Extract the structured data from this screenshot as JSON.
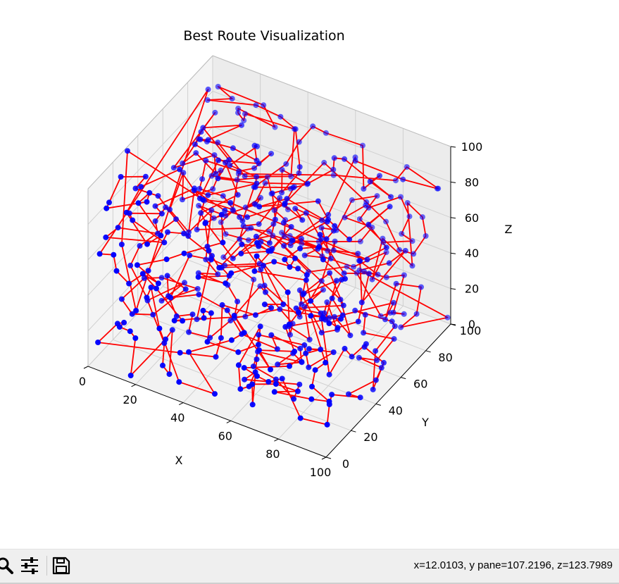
{
  "window": {
    "status_readout": "x=12.0103, y pane=107.2196, z=123.7989"
  },
  "toolbar": {
    "tools": [
      {
        "name": "zoom-icon"
      },
      {
        "name": "configure-subplots-icon"
      },
      {
        "name": "save-icon"
      }
    ]
  },
  "chart_data": {
    "type": "scatter",
    "projection": "3d",
    "title": "Best Route Visualization",
    "xlabel": "X",
    "ylabel": "Y",
    "zlabel": "Z",
    "xlim": [
      0,
      100
    ],
    "ylim": [
      0,
      100
    ],
    "zlim": [
      0,
      100
    ],
    "xticks": [
      "0",
      "20",
      "40",
      "60",
      "80",
      "100"
    ],
    "yticks": [
      "0",
      "20",
      "40",
      "60",
      "80",
      "100"
    ],
    "zticks": [
      "0",
      "20",
      "40",
      "60",
      "80",
      "100"
    ],
    "grid": true,
    "point_color": "#0000ff",
    "route_color": "#ff0000",
    "route_closed": true,
    "point_count": 500,
    "points_note_seed": 7,
    "series": [
      {
        "kind": "route-line",
        "color": "#ff0000"
      },
      {
        "kind": "cities",
        "color": "#0000ff",
        "count": 500
      }
    ]
  }
}
